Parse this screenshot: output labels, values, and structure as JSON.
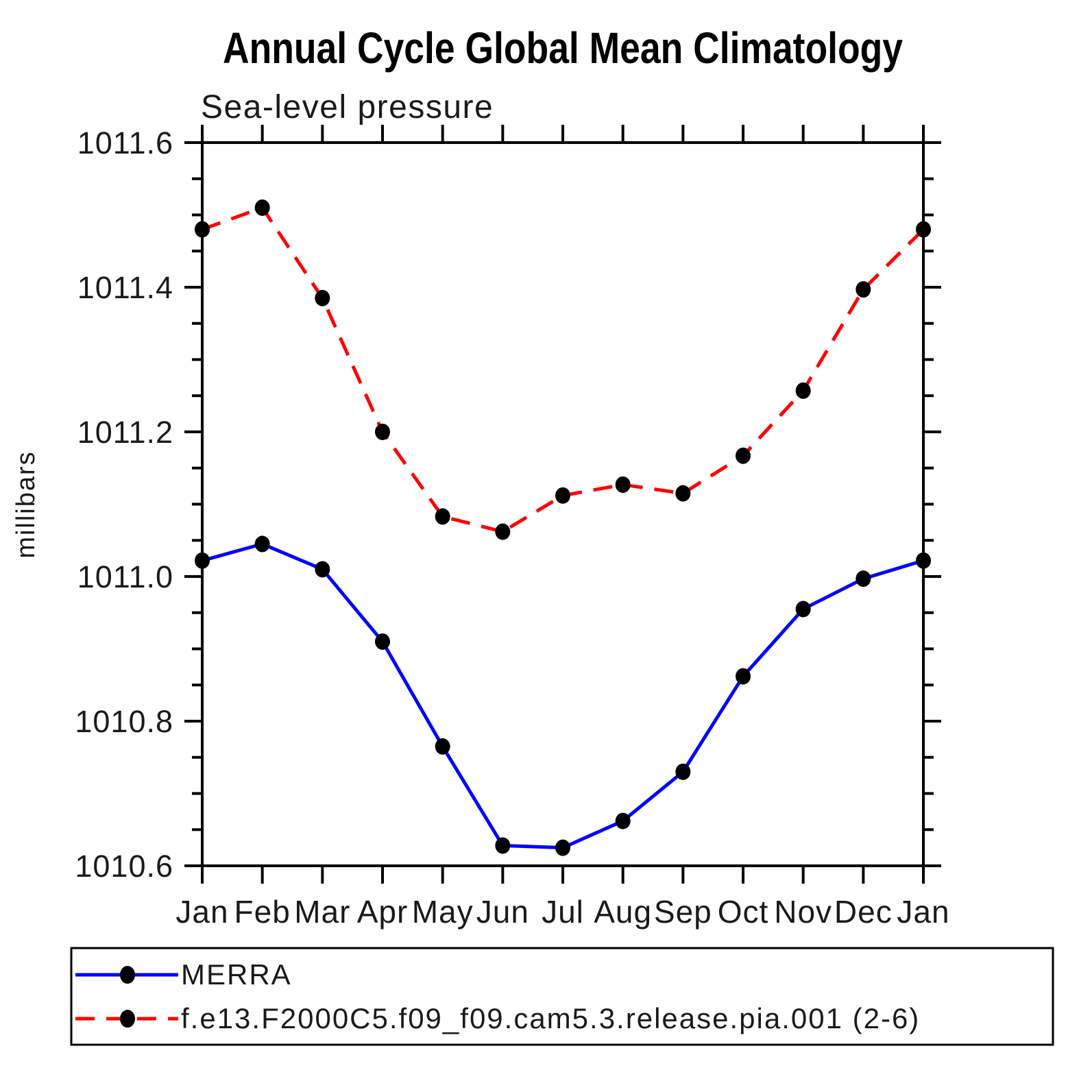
{
  "page": {
    "background": "#ffffff"
  },
  "chart_data": {
    "type": "line",
    "title": "Annual Cycle Global Mean Climatology",
    "subtitle": "Sea-level pressure",
    "ylabel": "millibars",
    "xlabel": "",
    "categories": [
      "Jan",
      "Feb",
      "Mar",
      "Apr",
      "May",
      "Jun",
      "Jul",
      "Aug",
      "Sep",
      "Oct",
      "Nov",
      "Dec",
      "Jan"
    ],
    "ylim": [
      1010.6,
      1011.6
    ],
    "ytick_major": 0.2,
    "ytick_minor": 0.05,
    "ytick_major_labels": [
      "1010.6",
      "1010.8",
      "1011.0",
      "1011.2",
      "1011.4",
      "1011.6"
    ],
    "grid": false,
    "legend_position": "bottom-left",
    "marker": "filled-circle",
    "marker_color": "#000000",
    "axis_color": "#000000",
    "series": [
      {
        "key": "merra",
        "name": "MERRA",
        "color": "#0000ff",
        "style": "solid",
        "values": [
          1011.022,
          1011.045,
          1011.01,
          1010.91,
          1010.765,
          1010.628,
          1010.625,
          1010.662,
          1010.73,
          1010.862,
          1010.955,
          1010.997,
          1011.022
        ]
      },
      {
        "key": "model",
        "name": "f.e13.F2000C5.f09_f09.cam5.3.release.pia.001 (2-6)",
        "color": "#ff0000",
        "style": "dashed",
        "values": [
          1011.48,
          1011.51,
          1011.385,
          1011.2,
          1011.083,
          1011.062,
          1011.112,
          1011.127,
          1011.115,
          1011.167,
          1011.257,
          1011.397,
          1011.48
        ]
      }
    ]
  }
}
